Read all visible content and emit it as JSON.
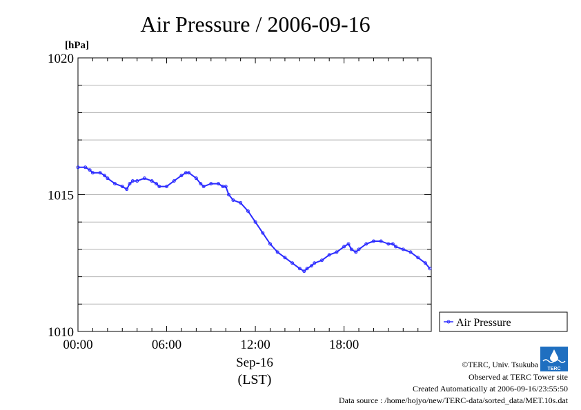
{
  "chart_data": {
    "type": "line",
    "title": "Air Pressure / 2006-09-16",
    "ylabel": "[hPa]",
    "ylim": [
      1010,
      1020
    ],
    "xlim": [
      0,
      23.9
    ],
    "y_ticks": [
      1010,
      1015,
      1020
    ],
    "y_tick_labels": [
      "1010",
      "1015",
      "1020"
    ],
    "x_ticks": [
      0,
      6,
      12,
      18
    ],
    "x_tick_labels": [
      "00:00",
      "06:00",
      "12:00",
      "18:00"
    ],
    "x_date_label": "Sep-16",
    "x_timezone_label": "(LST)",
    "grid": true,
    "legend_position": "right",
    "series": [
      {
        "name": "Air Pressure",
        "color": "#2b2bff",
        "x": [
          0,
          0.5,
          0.8,
          1,
          1.5,
          1.8,
          2,
          2.5,
          3,
          3.3,
          3.5,
          3.7,
          4,
          4.5,
          5,
          5.3,
          5.5,
          6,
          6.5,
          7,
          7.3,
          7.5,
          8,
          8.3,
          8.5,
          9,
          9.5,
          9.8,
          10,
          10.2,
          10.5,
          11,
          11.5,
          12,
          12.5,
          13,
          13.5,
          14,
          14.5,
          15,
          15.3,
          15.5,
          15.8,
          16,
          16.5,
          17,
          17.5,
          18,
          18.3,
          18.5,
          18.8,
          19,
          19.5,
          20,
          20.5,
          21,
          21.3,
          21.5,
          22,
          22.5,
          23,
          23.5,
          23.8
        ],
        "y": [
          1016.0,
          1016.0,
          1015.9,
          1015.8,
          1015.8,
          1015.7,
          1015.6,
          1015.4,
          1015.3,
          1015.2,
          1015.4,
          1015.5,
          1015.5,
          1015.6,
          1015.5,
          1015.4,
          1015.3,
          1015.3,
          1015.5,
          1015.7,
          1015.8,
          1015.8,
          1015.6,
          1015.4,
          1015.3,
          1015.4,
          1015.4,
          1015.3,
          1015.3,
          1015.0,
          1014.8,
          1014.7,
          1014.4,
          1014.0,
          1013.6,
          1013.2,
          1012.9,
          1012.7,
          1012.5,
          1012.3,
          1012.2,
          1012.3,
          1012.4,
          1012.5,
          1012.6,
          1012.8,
          1012.9,
          1013.1,
          1013.2,
          1013.0,
          1012.9,
          1013.0,
          1013.2,
          1013.3,
          1013.3,
          1013.2,
          1013.2,
          1013.1,
          1013.0,
          1012.9,
          1012.7,
          1012.5,
          1012.3
        ]
      }
    ]
  },
  "credits": {
    "copyright": "©TERC, Univ. Tsukuba",
    "observed": "Observed at TERC Tower site",
    "created": "Created Automatically at 2006-09-16/23:55:50",
    "source": "Data source : /home/hojyo/new/TERC-data/sorted_data/MET.10s.dat",
    "logo_text": "TERC",
    "logo_color": "#1f6fc0"
  }
}
